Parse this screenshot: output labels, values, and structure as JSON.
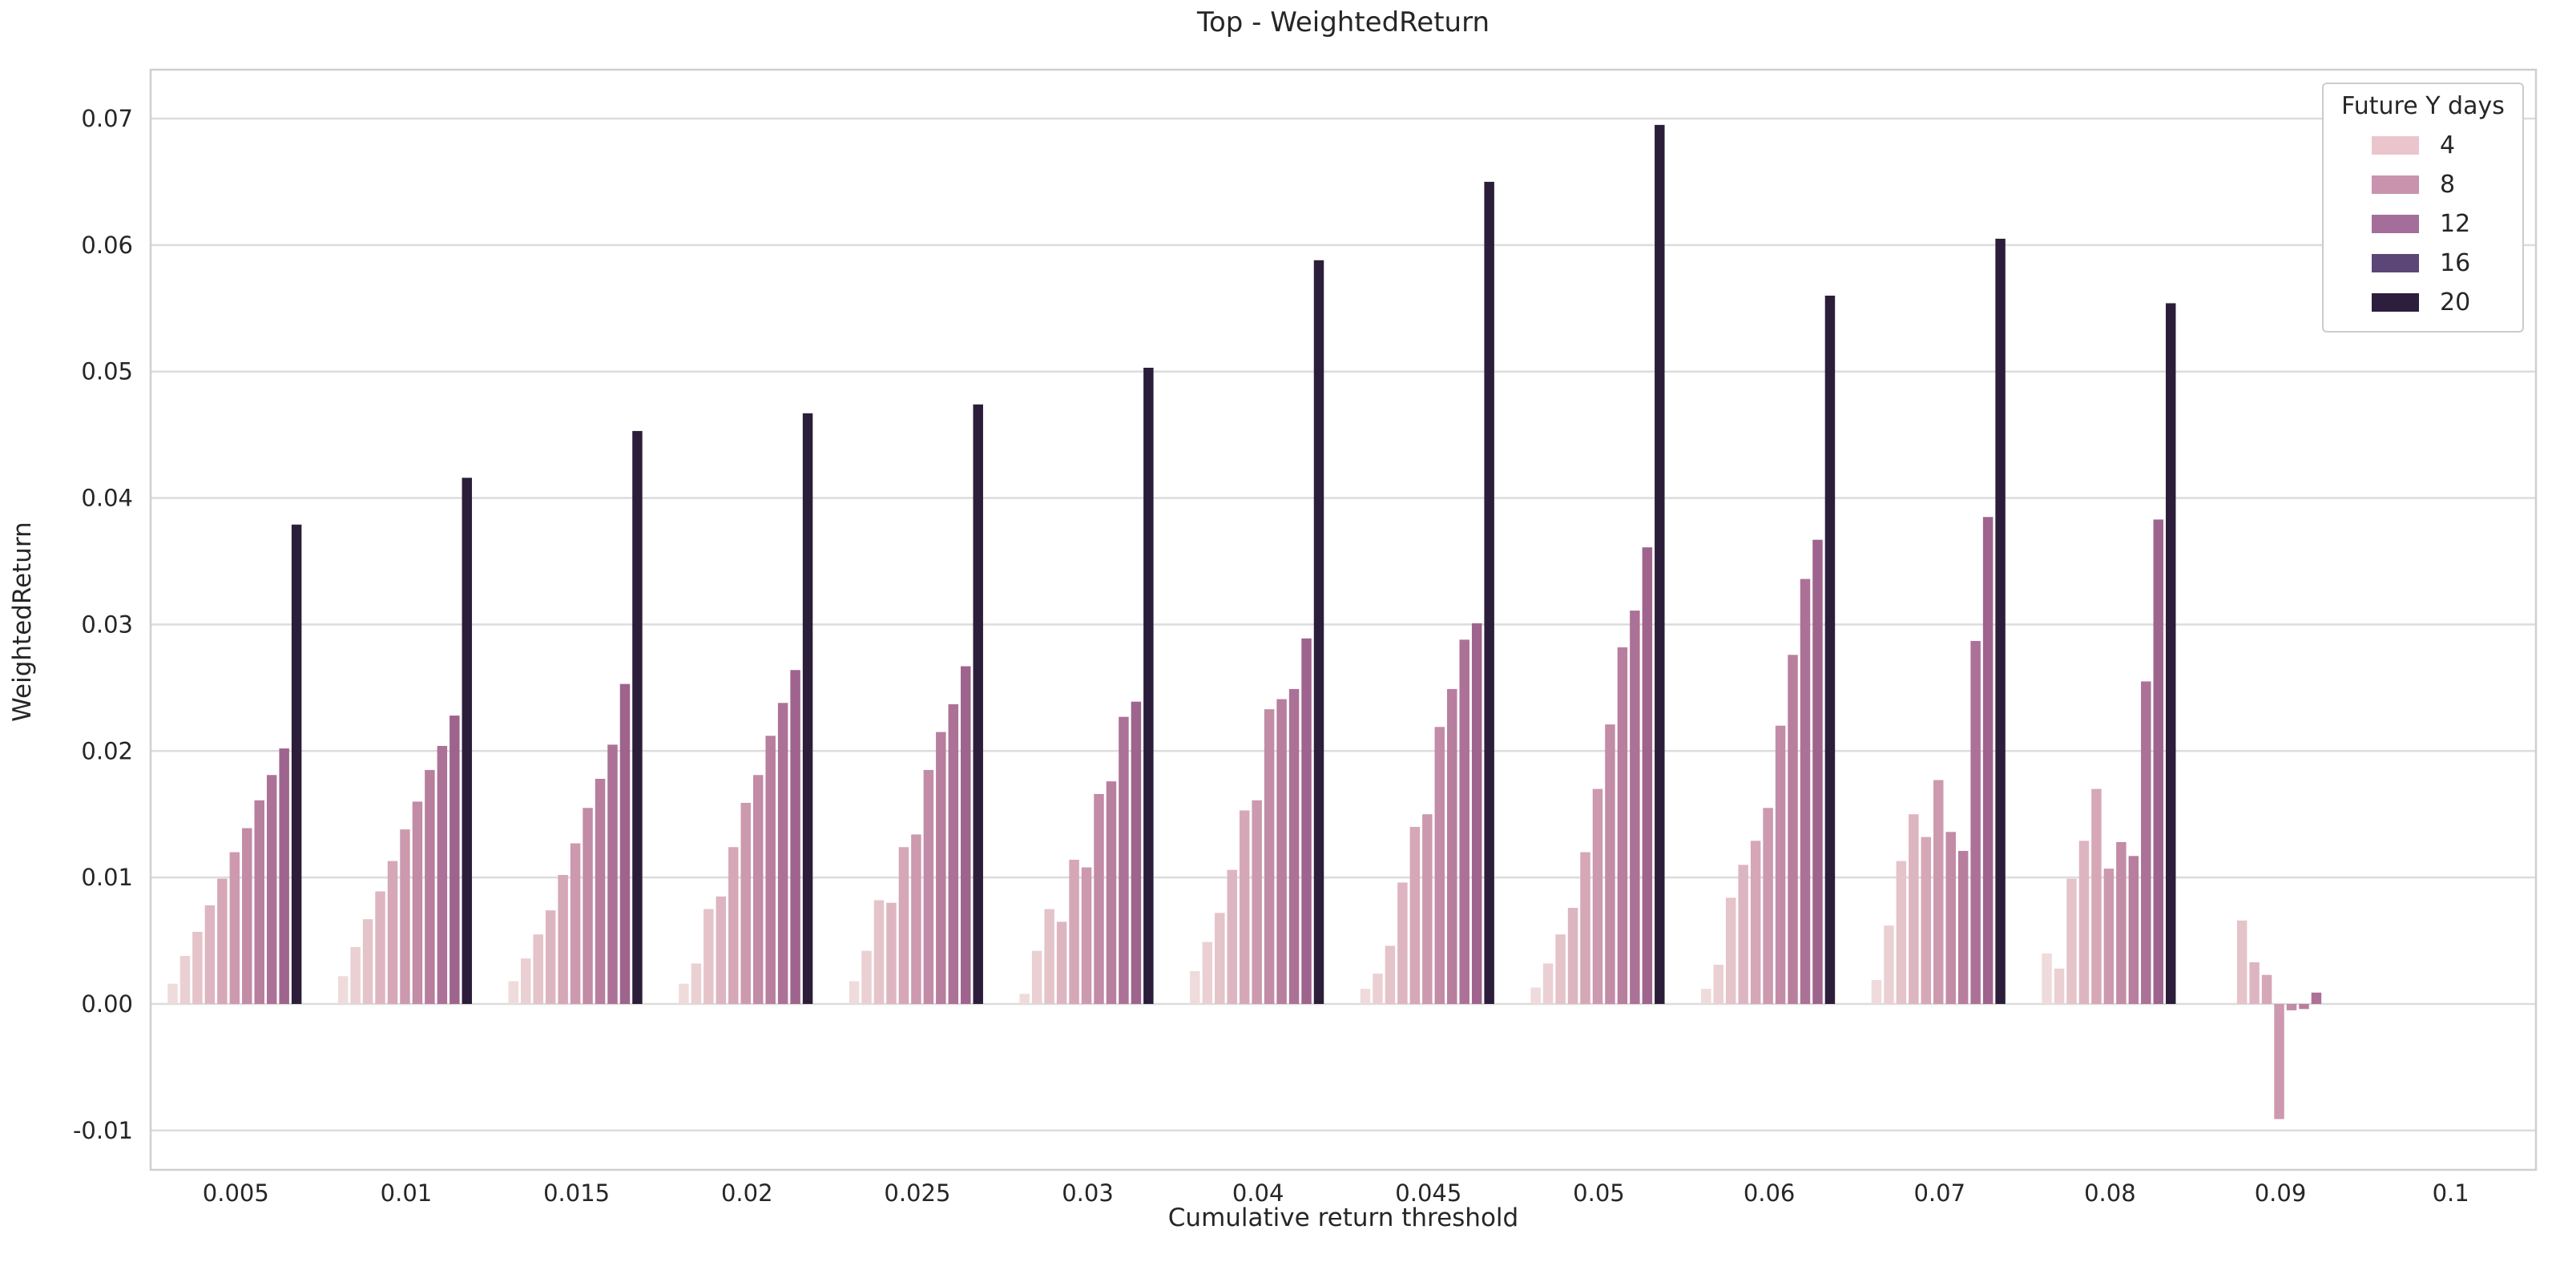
{
  "chart_data": {
    "type": "bar",
    "title": "Top - WeightedReturn",
    "xlabel": "Cumulative return threshold",
    "ylabel": "WeightedReturn",
    "categories": [
      "0.005",
      "0.01",
      "0.015",
      "0.02",
      "0.025",
      "0.03",
      "0.04",
      "0.045",
      "0.05",
      "0.06",
      "0.07",
      "0.08",
      "0.09",
      "0.1"
    ],
    "bars_per_group": 11,
    "group_palette": [
      "#efdbdb",
      "#ebd0d3",
      "#e4c3c9",
      "#ddb5c0",
      "#d5a7b7",
      "#cc99ae",
      "#c28ba6",
      "#b77e9e",
      "#ac7196",
      "#9e648d",
      "#2c1e3a"
    ],
    "groups": [
      {
        "category": "0.005",
        "values": [
          0.0016,
          0.0038,
          0.0057,
          0.0078,
          0.0099,
          0.012,
          0.0139,
          0.0161,
          0.0181,
          0.0202,
          0.0379
        ]
      },
      {
        "category": "0.01",
        "values": [
          0.0022,
          0.0045,
          0.0067,
          0.0089,
          0.0113,
          0.0138,
          0.016,
          0.0185,
          0.0204,
          0.0228,
          0.0416
        ]
      },
      {
        "category": "0.015",
        "values": [
          0.0018,
          0.0036,
          0.0055,
          0.0074,
          0.0102,
          0.0127,
          0.0155,
          0.0178,
          0.0205,
          0.0253,
          0.0453
        ]
      },
      {
        "category": "0.02",
        "values": [
          0.0016,
          0.0032,
          0.0075,
          0.0085,
          0.0124,
          0.0159,
          0.0181,
          0.0212,
          0.0238,
          0.0264,
          0.0467
        ]
      },
      {
        "category": "0.025",
        "values": [
          0.0018,
          0.0042,
          0.0082,
          0.008,
          0.0124,
          0.0134,
          0.0185,
          0.0215,
          0.0237,
          0.0267,
          0.0474
        ]
      },
      {
        "category": "0.03",
        "values": [
          0.0008,
          0.0042,
          0.0075,
          0.0065,
          0.0114,
          0.0108,
          0.0166,
          0.0176,
          0.0227,
          0.0239,
          0.0503
        ]
      },
      {
        "category": "0.04",
        "values": [
          0.0026,
          0.0049,
          0.0072,
          0.0106,
          0.0153,
          0.0161,
          0.0233,
          0.0241,
          0.0249,
          0.0289,
          0.0588
        ]
      },
      {
        "category": "0.045",
        "values": [
          0.0012,
          0.0024,
          0.0046,
          0.0096,
          0.014,
          0.015,
          0.0219,
          0.0249,
          0.0288,
          0.0301,
          0.065
        ]
      },
      {
        "category": "0.05",
        "values": [
          0.0013,
          0.0032,
          0.0055,
          0.0076,
          0.012,
          0.017,
          0.0221,
          0.0282,
          0.0311,
          0.0361,
          0.0695
        ]
      },
      {
        "category": "0.06",
        "values": [
          0.0012,
          0.0031,
          0.0084,
          0.011,
          0.0129,
          0.0155,
          0.022,
          0.0276,
          0.0336,
          0.0367,
          0.056
        ]
      },
      {
        "category": "0.07",
        "values": [
          0.0019,
          0.0062,
          0.0113,
          0.015,
          0.0132,
          0.0177,
          0.0136,
          0.0121,
          0.0287,
          0.0385,
          0.0605
        ]
      },
      {
        "category": "0.08",
        "values": [
          0.004,
          0.0028,
          0.0099,
          0.0129,
          0.017,
          0.0107,
          0.0128,
          0.0117,
          0.0255,
          0.0383,
          0.0554
        ]
      },
      {
        "category": "0.09",
        "values": [
          0.0,
          0.0,
          0.0066,
          0.0033,
          0.0023,
          -0.0091,
          -0.0005,
          -0.0004,
          0.0009,
          0.0,
          0.0
        ]
      },
      {
        "category": "0.1",
        "values": [
          0.0,
          0.0,
          0.0,
          0.0,
          0.0,
          0.0,
          0.0,
          0.0,
          0.0,
          0.0,
          0.0
        ]
      }
    ],
    "yticks": [
      -0.01,
      0.0,
      0.01,
      0.02,
      0.03,
      0.04,
      0.05,
      0.06,
      0.07
    ],
    "ytick_labels": [
      "-0.01",
      "0.00",
      "0.01",
      "0.02",
      "0.03",
      "0.04",
      "0.05",
      "0.06",
      "0.07"
    ],
    "ylim": [
      -0.0131,
      0.0739
    ],
    "grid": true,
    "legend": {
      "title": "Future Y days",
      "position": "upper right",
      "entries": [
        {
          "label": "4",
          "color": "#eac6cc"
        },
        {
          "label": "8",
          "color": "#c993ae"
        },
        {
          "label": "12",
          "color": "#a56d99"
        },
        {
          "label": "16",
          "color": "#5c4677"
        },
        {
          "label": "20",
          "color": "#2d1e3e"
        }
      ]
    }
  },
  "style": {
    "grid_color": "#dcdcdc",
    "spine_color": "#cfcfcf",
    "text_color": "#262626",
    "background": "#ffffff"
  }
}
